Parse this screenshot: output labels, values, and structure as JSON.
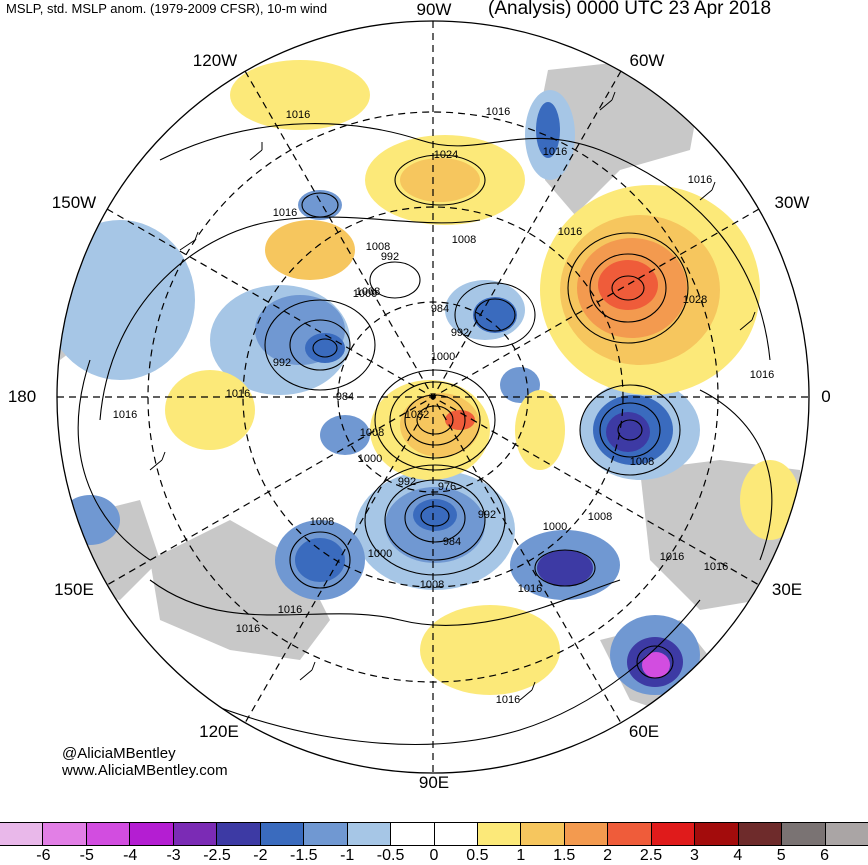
{
  "header": {
    "left_title": "MSLP, std. MSLP anom. (1979-2009 CFSR), 10-m wind",
    "right_title": "(Analysis) 0000 UTC 23 Apr 2018"
  },
  "longitude_labels": {
    "top": "90W",
    "upper_left": "120W",
    "upper_right": "60W",
    "left_upper": "150W",
    "right_upper": "30W",
    "left": "180",
    "right": "0",
    "left_lower": "150E",
    "right_lower": "30E",
    "lower_left": "120E",
    "lower_right": "60E",
    "bottom": "90E"
  },
  "contour_labels": [
    "1016",
    "1016",
    "1016",
    "1024",
    "1016",
    "1016",
    "1008",
    "1008",
    "992",
    "1000",
    "1016",
    "1008",
    "984",
    "992",
    "1028",
    "992",
    "1000",
    "984",
    "1016",
    "1016",
    "1016",
    "1032",
    "1008",
    "1000",
    "992",
    "976",
    "992",
    "1008",
    "1008",
    "1000",
    "1008",
    "984",
    "1016",
    "1016",
    "1016",
    "1008",
    "1000",
    "1016",
    "1016",
    "1016"
  ],
  "credits": {
    "handle": "@AliciaMBentley",
    "website": "www.AliciaMBentley.com"
  },
  "colorbar": {
    "colors": [
      "#e9b8ea",
      "#e27fe6",
      "#d24de0",
      "#b41ed2",
      "#7b2bb5",
      "#3d3aa4",
      "#3a6bbe",
      "#7098d2",
      "#a6c6e6",
      "#ffffff",
      "#ffffff",
      "#fce979",
      "#f6c65e",
      "#f39a4f",
      "#ef5c3a",
      "#e01b1b",
      "#a30c0c",
      "#6e2b2b",
      "#7a7373",
      "#aaa5a5"
    ],
    "ticks": [
      "-6",
      "-5",
      "-4",
      "-3",
      "-2.5",
      "-2",
      "-1.5",
      "-1",
      "-0.5",
      "0",
      "0.5",
      "1",
      "1.5",
      "2",
      "2.5",
      "3",
      "4",
      "5",
      "6"
    ]
  }
}
